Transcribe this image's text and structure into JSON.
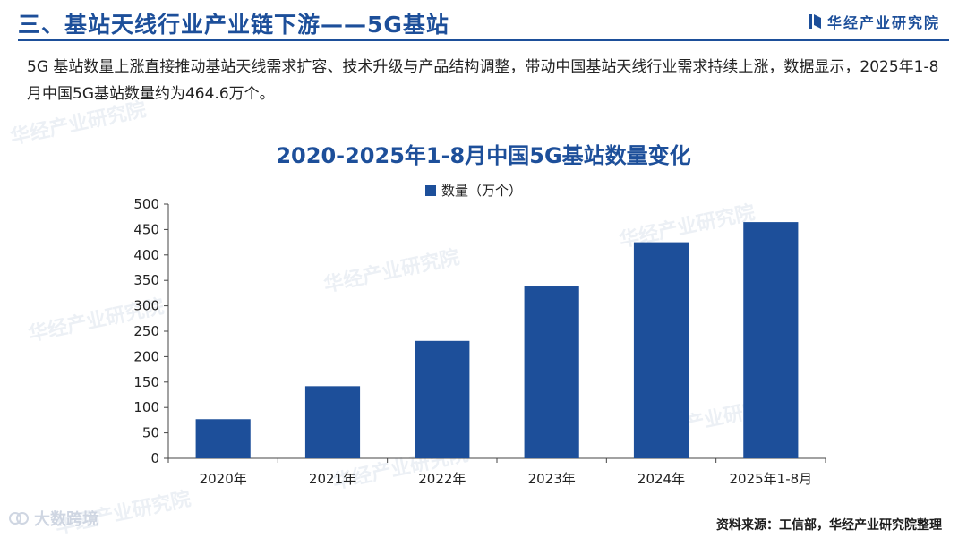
{
  "header": {
    "title": "三、基站天线行业产业链下游——5G基站",
    "brand": "华经产业研究院",
    "logo_icon": "brand-flag-icon"
  },
  "intro": {
    "text": "5G 基站数量上涨直接推动基站天线需求扩容、技术升级与产品结构调整，带动中国基站天线行业需求持续上涨，数据显示，2025年1-8月中国5G基站数量约为464.6万个。"
  },
  "watermark": {
    "text": "华经产业研究院"
  },
  "chart_data": {
    "type": "bar",
    "title": "2020-2025年1-8月中国5G基站数量变化",
    "categories": [
      "2020年",
      "2021年",
      "2022年",
      "2023年",
      "2024年",
      "2025年1-8月"
    ],
    "series": [
      {
        "name": "数量（万个）",
        "values": [
          77,
          142,
          231,
          338,
          425,
          464.6
        ],
        "color": "#1d4f9a"
      }
    ],
    "ylim": [
      0,
      500
    ],
    "yticks": [
      0,
      50,
      100,
      150,
      200,
      250,
      300,
      350,
      400,
      450,
      500
    ],
    "xlabel": "",
    "ylabel": "",
    "grid": false,
    "legend": "top-center"
  },
  "footer": {
    "platform": "大数跨境",
    "source": "资料来源：工信部，华经产业研究院整理"
  }
}
